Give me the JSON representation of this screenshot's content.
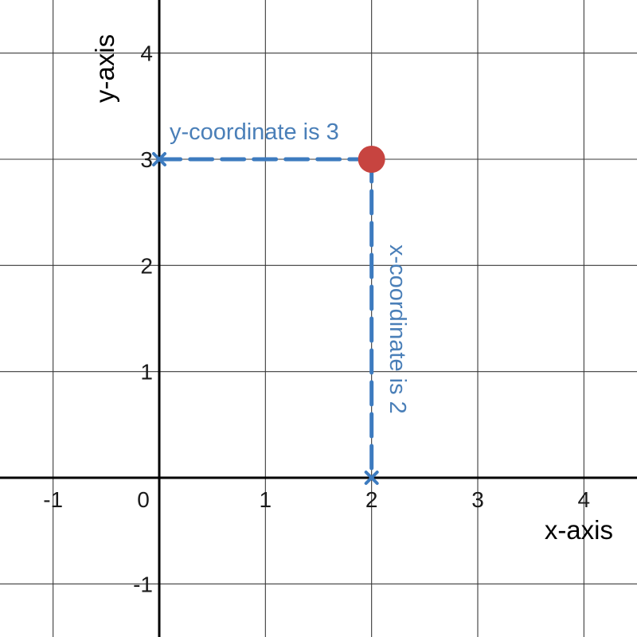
{
  "chart_data": {
    "type": "scatter",
    "title": "",
    "xlabel": "x-axis",
    "ylabel": "y-axis",
    "xlim": [
      -1.5,
      4.5
    ],
    "ylim": [
      -1.5,
      4.5
    ],
    "grid": true,
    "x_ticks": [
      -1,
      0,
      1,
      2,
      3,
      4
    ],
    "y_ticks": [
      -1,
      1,
      2,
      3,
      4
    ],
    "x_tick_labels": [
      "-1",
      "0",
      "1",
      "2",
      "3",
      "4"
    ],
    "y_tick_labels": [
      "-1",
      "1",
      "2",
      "3",
      "4"
    ],
    "point": {
      "x": 2,
      "y": 3
    },
    "guides": [
      {
        "from": [
          2,
          3
        ],
        "to": [
          0,
          3
        ],
        "label": "y-coordinate is 3"
      },
      {
        "from": [
          2,
          3
        ],
        "to": [
          2,
          0
        ],
        "label": "x-coordinate is 2"
      }
    ],
    "colors": {
      "point": "#c74440",
      "guide": "#3d7bbf",
      "annotation": "#4a7fb8"
    }
  }
}
